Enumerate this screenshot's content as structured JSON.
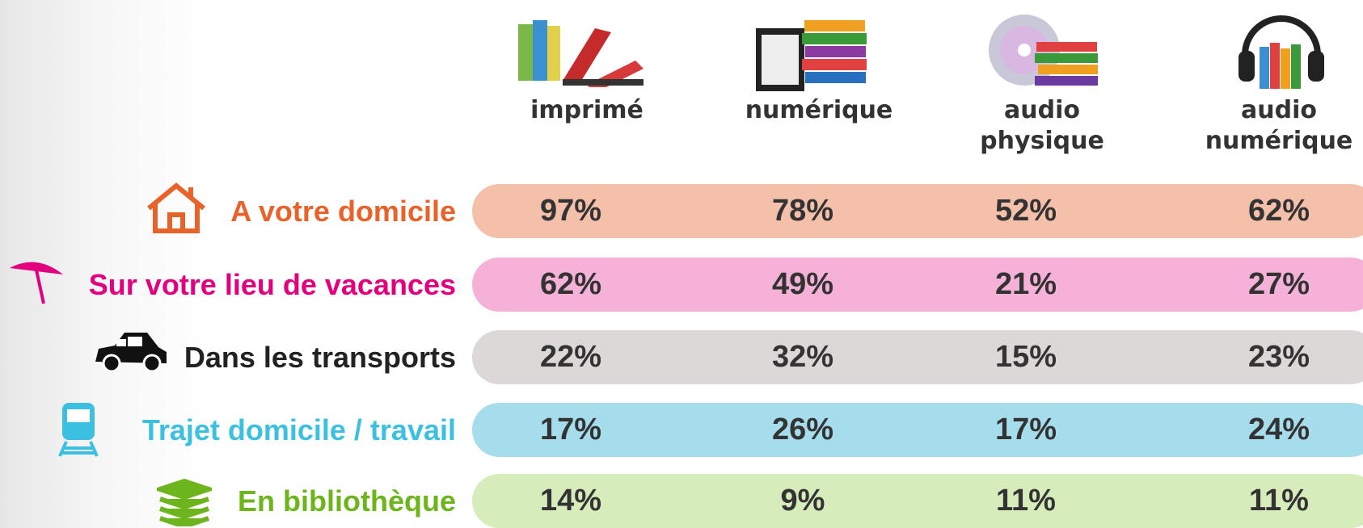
{
  "columns": [
    "imprimé",
    "numérique",
    "audio physique",
    "audio numérique"
  ],
  "rows": [
    {
      "label": "A votre domicile",
      "color": "#e8622a",
      "fill": "#f5c0aa",
      "values": [
        "97%",
        "78%",
        "52%",
        "62%"
      ]
    },
    {
      "label": "Sur votre lieu de vacances",
      "color": "#e3007e",
      "fill": "#f6b1d8",
      "values": [
        "62%",
        "49%",
        "21%",
        "27%"
      ]
    },
    {
      "label": "Dans les transports",
      "color": "#222222",
      "fill": "#dcd8d8",
      "values": [
        "22%",
        "32%",
        "15%",
        "23%"
      ]
    },
    {
      "label": "Trajet domicile / travail",
      "color": "#3cc0e2",
      "fill": "#a5dded",
      "values": [
        "17%",
        "26%",
        "17%",
        "24%"
      ]
    },
    {
      "label": "En bibliothèque",
      "color": "#6cb51c",
      "fill": "#d7ecbb",
      "values": [
        "14%",
        "9%",
        "11%",
        "11%"
      ]
    }
  ]
}
